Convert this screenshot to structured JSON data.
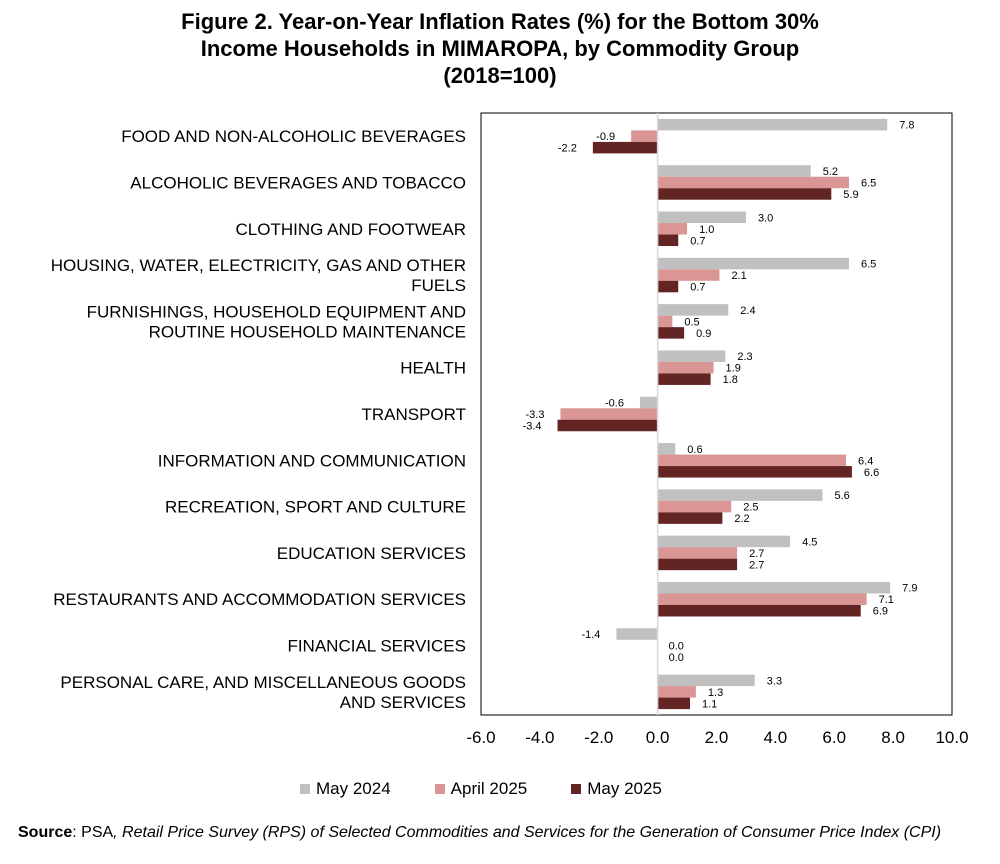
{
  "title_lines": [
    "Figure 2. Year-on-Year Inflation Rates (%) for the Bottom 30%",
    "Income Households in MIMAROPA, by Commodity Group",
    "(2018=100)"
  ],
  "source": {
    "label": "Source",
    "sep": ": PSA",
    "title": ", Retail Price Survey (RPS) of Selected Commodities and Services for the Generation of Consumer Price Index (CPI)"
  },
  "legend": {
    "placement": "bottom",
    "items": [
      {
        "label": "May 2024",
        "color": "#c0c0c0"
      },
      {
        "label": "April 2025",
        "color": "#d99694"
      },
      {
        "label": "May 2025",
        "color": "#632523"
      }
    ]
  },
  "chart_data": {
    "type": "bar",
    "orientation": "horizontal",
    "xlim": [
      -6.0,
      10.0
    ],
    "xticks": [
      "-6.0",
      "-4.0",
      "-2.0",
      "0.0",
      "2.0",
      "4.0",
      "6.0",
      "8.0",
      "10.0"
    ],
    "grid": false,
    "categories": [
      [
        "FOOD AND NON-ALCOHOLIC BEVERAGES"
      ],
      [
        "ALCOHOLIC BEVERAGES  AND TOBACCO"
      ],
      [
        "CLOTHING AND FOOTWEAR"
      ],
      [
        "HOUSING, WATER, ELECTRICITY, GAS AND OTHER",
        "FUELS"
      ],
      [
        "FURNISHINGS, HOUSEHOLD EQUIPMENT AND",
        "ROUTINE HOUSEHOLD MAINTENANCE"
      ],
      [
        "HEALTH"
      ],
      [
        "TRANSPORT"
      ],
      [
        "INFORMATION AND COMMUNICATION"
      ],
      [
        "RECREATION, SPORT AND CULTURE"
      ],
      [
        "EDUCATION SERVICES"
      ],
      [
        "RESTAURANTS AND ACCOMMODATION SERVICES"
      ],
      [
        "FINANCIAL SERVICES"
      ],
      [
        "PERSONAL CARE, AND MISCELLANEOUS GOODS",
        "AND SERVICES"
      ]
    ],
    "series": [
      {
        "name": "May 2024",
        "color": "#c0c0c0",
        "values": [
          7.8,
          5.2,
          3.0,
          6.5,
          2.4,
          2.3,
          -0.6,
          0.6,
          5.6,
          4.5,
          7.9,
          -1.4,
          3.3
        ],
        "labels": [
          "7.8",
          "5.2",
          "3.0",
          "6.5",
          "2.4",
          "2.3",
          "-0.6",
          "0.6",
          "5.6",
          "4.5",
          "7.9",
          "-1.4",
          "3.3"
        ]
      },
      {
        "name": "April 2025",
        "color": "#d99694",
        "values": [
          -0.9,
          6.5,
          1.0,
          2.1,
          0.5,
          1.9,
          -3.3,
          6.4,
          2.5,
          2.7,
          7.1,
          0.0,
          1.3
        ],
        "labels": [
          "-0.9",
          "6.5",
          "1.0",
          "2.1",
          "0.5",
          "1.9",
          "-3.3",
          "6.4",
          "2.5",
          "2.7",
          "7.1",
          "0.0",
          "1.3"
        ]
      },
      {
        "name": "May 2025",
        "color": "#632523",
        "values": [
          -2.2,
          5.9,
          0.7,
          0.7,
          0.9,
          1.8,
          -3.4,
          6.6,
          2.2,
          2.7,
          6.9,
          0.0,
          1.1
        ],
        "labels": [
          "-2.2",
          "5.9",
          "0.7",
          "0.7",
          "0.9",
          "1.8",
          "-3.4",
          "6.6",
          "2.2",
          "2.7",
          "6.9",
          "0.0",
          "1.1"
        ]
      }
    ]
  }
}
